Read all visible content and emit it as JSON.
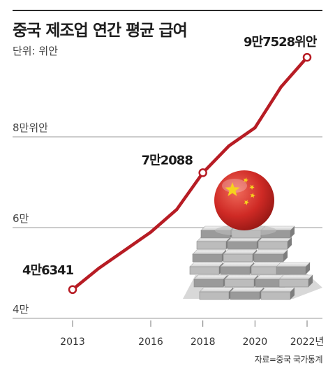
{
  "header": {
    "title": "중국 제조업 연간 평균 급여",
    "unit": "단위: 위안",
    "source": "자료=중국 국가통계"
  },
  "colors": {
    "line": "#b71c24",
    "grid": "#9a9a9a",
    "flag": "#d02a26",
    "star": "#f6d21d"
  },
  "icons": {
    "decoration": "china-flag-ball-on-silver-bars-icon"
  },
  "chart_data": {
    "type": "line",
    "title": "중국 제조업 연간 평균 급여",
    "ylabel": "단위: 위안",
    "ylim": [
      40000,
      100000
    ],
    "yticks": [
      {
        "value": 40000,
        "label": "4만"
      },
      {
        "value": 60000,
        "label": "6만"
      },
      {
        "value": 80000,
        "label": "8만위안"
      }
    ],
    "xticks": [
      {
        "value": 2013,
        "label": "2013"
      },
      {
        "value": 2016,
        "label": "2016"
      },
      {
        "value": 2018,
        "label": "2018"
      },
      {
        "value": 2020,
        "label": "2020"
      },
      {
        "value": 2022,
        "label": "2022년"
      }
    ],
    "x": [
      2013,
      2014,
      2015,
      2016,
      2017,
      2018,
      2019,
      2020,
      2021,
      2022
    ],
    "values": [
      46341,
      51000,
      55000,
      59000,
      64000,
      72088,
      78000,
      82000,
      91000,
      97528
    ],
    "highlights": [
      {
        "x": 2013,
        "y": 46341,
        "label": "4만6341"
      },
      {
        "x": 2018,
        "y": 72088,
        "label": "7만2088"
      },
      {
        "x": 2022,
        "y": 97528,
        "label": "9만7528위안"
      }
    ],
    "grid": true
  }
}
